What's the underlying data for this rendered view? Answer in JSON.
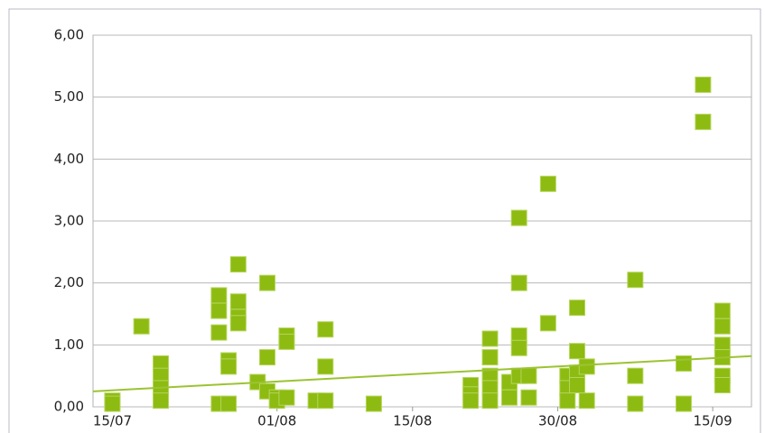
{
  "chart_data": {
    "type": "scatter",
    "x": [
      "15/07",
      "15/07",
      "18/07",
      "20/07",
      "20/07",
      "20/07",
      "20/07",
      "26/07",
      "26/07",
      "26/07",
      "26/07",
      "27/07",
      "27/07",
      "27/07",
      "28/07",
      "28/07",
      "28/07",
      "28/07",
      "30/07",
      "31/07",
      "31/07",
      "31/07",
      "01/08",
      "01/08",
      "02/08",
      "02/08",
      "02/08",
      "05/08",
      "06/08",
      "06/08",
      "06/08",
      "11/08",
      "21/08",
      "21/08",
      "21/08",
      "23/08",
      "23/08",
      "23/08",
      "23/08",
      "23/08",
      "25/08",
      "25/08",
      "26/08",
      "26/08",
      "26/08",
      "26/08",
      "26/08",
      "27/08",
      "27/08",
      "29/08",
      "29/08",
      "31/08",
      "31/08",
      "31/08",
      "01/09",
      "01/09",
      "01/09",
      "01/09",
      "02/09",
      "02/09",
      "07/09",
      "07/09",
      "07/09",
      "12/09",
      "12/09",
      "14/09",
      "14/09",
      "16/09",
      "16/09",
      "16/09",
      "16/09",
      "16/09",
      "16/09"
    ],
    "values": [
      0.1,
      0.05,
      1.3,
      0.7,
      0.5,
      0.3,
      0.1,
      1.8,
      1.55,
      1.2,
      0.05,
      0.75,
      0.65,
      0.05,
      2.3,
      1.7,
      1.45,
      1.35,
      0.4,
      2.0,
      0.8,
      0.25,
      0.15,
      0.1,
      1.15,
      1.05,
      0.15,
      0.1,
      1.25,
      0.65,
      0.1,
      0.05,
      0.35,
      0.2,
      0.1,
      1.1,
      0.8,
      0.5,
      0.3,
      0.1,
      0.4,
      0.15,
      3.05,
      2.0,
      1.15,
      0.95,
      0.5,
      0.5,
      0.15,
      3.6,
      1.35,
      0.5,
      0.3,
      0.1,
      1.6,
      0.9,
      0.55,
      0.35,
      0.65,
      0.1,
      2.05,
      0.5,
      0.05,
      0.7,
      0.05,
      5.2,
      4.6,
      1.55,
      1.3,
      1.0,
      0.8,
      0.5,
      0.35
    ],
    "color": "#8dbb12",
    "trendline": {
      "x": [
        "13/07",
        "19/09"
      ],
      "values": [
        0.25,
        0.82
      ],
      "color": "#9cc332"
    },
    "xlim": [
      "13/07",
      "19/09"
    ],
    "xticks": [
      "15/07",
      "01/08",
      "15/08",
      "30/08",
      "15/09"
    ],
    "ylim": [
      0,
      6
    ],
    "yticks": [
      {
        "value": 0,
        "label": "0,00"
      },
      {
        "value": 1,
        "label": "1,00"
      },
      {
        "value": 2,
        "label": "2,00"
      },
      {
        "value": 3,
        "label": "3,00"
      },
      {
        "value": 4,
        "label": "4,00"
      },
      {
        "value": 5,
        "label": "5,00"
      },
      {
        "value": 6,
        "label": "6,00"
      }
    ],
    "grid": true
  }
}
